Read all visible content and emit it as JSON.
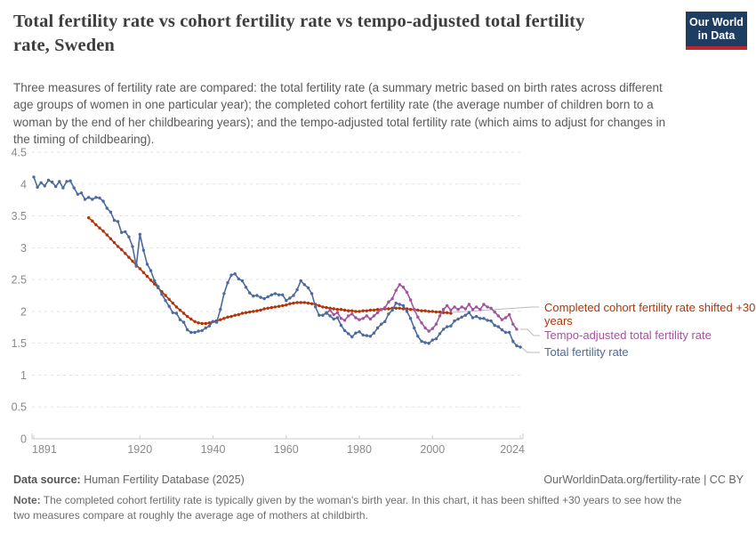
{
  "header": {
    "title": "Total fertility rate vs cohort fertility rate vs tempo-adjusted total fertility\nrate, Sweden",
    "subtitle": "Three measures of fertility rate are compared: the total fertility rate (a summary metric based on birth rates across different\nage groups of women in one particular year); the completed cohort fertility rate (the average number of children born to a\nwoman by the end of her childbearing years); and the tempo-adjusted total fertility rate (which aims to adjust for changes in\nthe timing of childbearing).",
    "logo_line1": "Our World",
    "logo_line2": "in Data",
    "logo_bg_color": "#1d3d63",
    "logo_bar_color": "#c0262d"
  },
  "chart_data": {
    "type": "line",
    "title": "Total fertility rate vs cohort fertility rate vs tempo-adjusted total fertility rate, Sweden",
    "xlabel": "",
    "ylabel": "",
    "x_axis": {
      "range": [
        1891,
        2024
      ],
      "ticks": [
        1891,
        1920,
        1940,
        1960,
        1980,
        2000,
        2024
      ]
    },
    "y_axis": {
      "range": [
        0,
        4.5
      ],
      "ticks": [
        0,
        0.5,
        1,
        1.5,
        2,
        2.5,
        3,
        3.5,
        4,
        4.5
      ]
    },
    "grid": "dashed-horizontal",
    "legend_position": "right",
    "series": [
      {
        "name": "Completed cohort fertility rate shifted +30 years",
        "color": "#b13507",
        "start_year": 1906,
        "values": [
          3.47,
          3.42,
          3.36,
          3.31,
          3.26,
          3.2,
          3.14,
          3.08,
          3.02,
          2.97,
          2.91,
          2.85,
          2.79,
          2.73,
          2.67,
          2.61,
          2.55,
          2.49,
          2.43,
          2.37,
          2.31,
          2.25,
          2.19,
          2.13,
          2.07,
          2.02,
          1.97,
          1.92,
          1.88,
          1.84,
          1.82,
          1.81,
          1.81,
          1.82,
          1.84,
          1.85,
          1.87,
          1.89,
          1.91,
          1.92,
          1.94,
          1.95,
          1.97,
          1.98,
          1.99,
          2.0,
          2.01,
          2.02,
          2.04,
          2.05,
          2.06,
          2.07,
          2.08,
          2.09,
          2.1,
          2.12,
          2.13,
          2.14,
          2.14,
          2.14,
          2.13,
          2.12,
          2.11,
          2.09,
          2.07,
          2.06,
          2.05,
          2.04,
          2.03,
          2.03,
          2.02,
          2.01,
          2.01,
          2.0,
          2.0,
          2.01,
          2.01,
          2.02,
          2.02,
          2.03,
          2.03,
          2.04,
          2.04,
          2.05,
          2.05,
          2.05,
          2.04,
          2.04,
          2.03,
          2.03,
          2.02,
          2.01,
          2.01,
          2.0,
          2.0,
          1.99,
          1.99,
          1.98,
          1.98,
          1.97
        ]
      },
      {
        "name": "Tempo-adjusted total fertility rate",
        "color": "#a2559c",
        "start_year": 1971,
        "values": [
          1.97,
          2.02,
          1.95,
          1.98,
          1.89,
          1.86,
          1.93,
          1.96,
          1.9,
          1.87,
          1.89,
          1.93,
          1.88,
          1.93,
          1.98,
          2.03,
          2.06,
          2.15,
          2.2,
          2.33,
          2.42,
          2.38,
          2.3,
          2.18,
          2.03,
          1.91,
          1.82,
          1.74,
          1.69,
          1.73,
          1.8,
          1.93,
          2.03,
          2.09,
          2.02,
          2.07,
          2.03,
          2.07,
          2.04,
          2.11,
          2.03,
          2.07,
          2.03,
          2.11,
          2.07,
          2.05,
          1.99,
          1.93,
          1.87,
          1.9,
          1.95,
          1.8,
          1.72
        ]
      },
      {
        "name": "Total fertility rate",
        "color": "#4c6a9c",
        "start_year": 1891,
        "values": [
          4.11,
          3.95,
          4.02,
          3.97,
          4.06,
          4.03,
          3.96,
          4.04,
          3.94,
          4.04,
          4.05,
          3.94,
          3.84,
          3.86,
          3.76,
          3.79,
          3.76,
          3.79,
          3.78,
          3.73,
          3.62,
          3.56,
          3.43,
          3.41,
          3.24,
          3.25,
          3.17,
          3.02,
          2.71,
          3.21,
          2.96,
          2.74,
          2.64,
          2.48,
          2.39,
          2.27,
          2.17,
          2.08,
          1.98,
          1.97,
          1.87,
          1.83,
          1.71,
          1.67,
          1.67,
          1.69,
          1.7,
          1.74,
          1.77,
          1.84,
          1.83,
          2.03,
          2.28,
          2.45,
          2.57,
          2.59,
          2.51,
          2.48,
          2.38,
          2.29,
          2.24,
          2.25,
          2.22,
          2.2,
          2.23,
          2.26,
          2.28,
          2.26,
          2.26,
          2.17,
          2.21,
          2.25,
          2.34,
          2.48,
          2.42,
          2.37,
          2.28,
          2.07,
          1.94,
          1.94,
          1.98,
          1.93,
          1.88,
          1.9,
          1.78,
          1.7,
          1.65,
          1.6,
          1.66,
          1.68,
          1.63,
          1.62,
          1.61,
          1.66,
          1.74,
          1.8,
          1.84,
          1.96,
          2.02,
          2.13,
          2.11,
          2.09,
          2.0,
          1.89,
          1.74,
          1.61,
          1.53,
          1.51,
          1.5,
          1.55,
          1.57,
          1.65,
          1.72,
          1.76,
          1.77,
          1.85,
          1.88,
          1.91,
          1.94,
          1.98,
          1.9,
          1.92,
          1.89,
          1.89,
          1.86,
          1.85,
          1.78,
          1.76,
          1.71,
          1.67,
          1.67,
          1.53,
          1.46,
          1.44
        ]
      }
    ]
  },
  "footer": {
    "data_source_label": "Data source:",
    "data_source": " Human Fertility Database (2025)",
    "attribution": "OurWorldinData.org/fertility-rate | CC BY",
    "note_label": "Note:",
    "note": " The completed cohort fertility rate is typically given by the woman's birth year. In this chart, it has been shifted +30 years to see how the\ntwo measures compare at roughly the average age of mothers at childbirth."
  }
}
